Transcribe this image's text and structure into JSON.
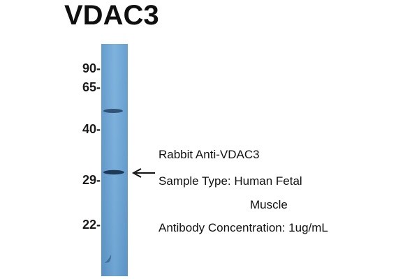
{
  "title": "VDAC3",
  "markers": [
    {
      "label": "90-"
    },
    {
      "label": "65-"
    },
    {
      "label": "40-"
    },
    {
      "label": "29-"
    },
    {
      "label": "22-"
    }
  ],
  "annotation": {
    "antibody": "Rabbit Anti-VDAC3",
    "sample_line1": "Sample Type: Human Fetal",
    "sample_line2": "Muscle",
    "concentration": "Antibody Concentration: 1ug/mL"
  },
  "colors": {
    "lane_fill": "#6ea6d6",
    "band": "#1f3d5c",
    "arrow": "#111111"
  }
}
